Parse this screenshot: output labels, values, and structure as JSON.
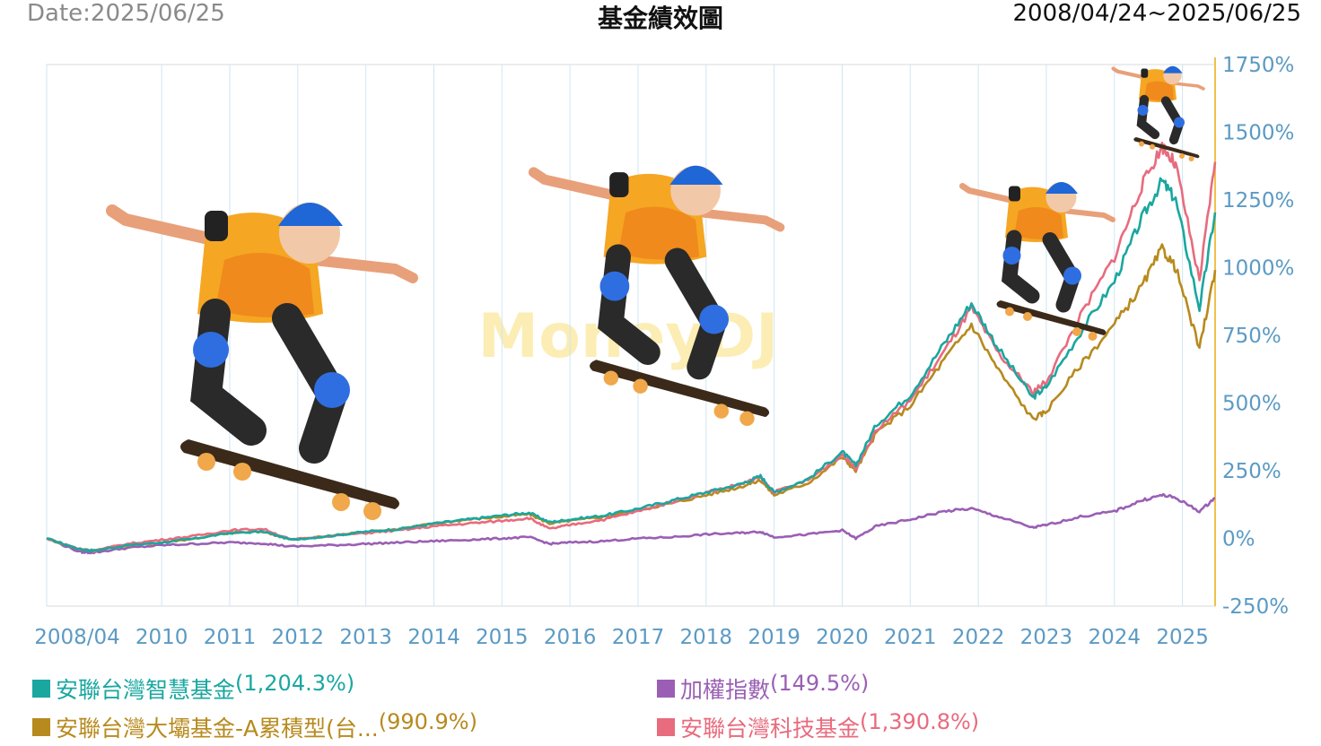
{
  "header": {
    "date": "Date:2025/06/25",
    "title": "基金績效圖",
    "range": "2008/04/24~2025/06/25"
  },
  "watermark": "MoneyDJ",
  "chart_data": {
    "type": "line",
    "title": "基金績效圖",
    "x_ticks": [
      "2008/04",
      "2010",
      "2011",
      "2012",
      "2013",
      "2014",
      "2015",
      "2016",
      "2017",
      "2018",
      "2019",
      "2020",
      "2021",
      "2022",
      "2023",
      "2024",
      "2025"
    ],
    "x_tick_years": [
      2008.31,
      2010,
      2011,
      2012,
      2013,
      2014,
      2015,
      2016,
      2017,
      2018,
      2019,
      2020,
      2021,
      2022,
      2023,
      2024,
      2025
    ],
    "y_ticks": [
      "1750%",
      "1500%",
      "1250%",
      "1000%",
      "750%",
      "500%",
      "250%",
      "0%",
      "-250%"
    ],
    "ylim": [
      -250,
      1750
    ],
    "xlim": [
      2008.31,
      2025.48
    ],
    "grid": true,
    "legend_position": "bottom",
    "series": [
      {
        "name": "安聯台灣智慧基金",
        "value_label": "(1,204.3%)",
        "color": "#1aa7a0",
        "x": [
          2008.31,
          2008.8,
          2009.0,
          2009.5,
          2010.0,
          2010.5,
          2011.0,
          2011.5,
          2011.9,
          2012.5,
          2013.0,
          2013.5,
          2014.0,
          2014.5,
          2015.0,
          2015.4,
          2015.7,
          2016.0,
          2016.5,
          2017.0,
          2017.5,
          2018.0,
          2018.5,
          2018.8,
          2019.0,
          2019.5,
          2020.0,
          2020.2,
          2020.5,
          2021.0,
          2021.5,
          2021.9,
          2022.3,
          2022.8,
          2023.0,
          2023.5,
          2024.0,
          2024.4,
          2024.7,
          2024.9,
          2025.25,
          2025.48
        ],
        "y": [
          0,
          -40,
          -45,
          -25,
          -15,
          0,
          20,
          25,
          -5,
          10,
          25,
          35,
          55,
          70,
          85,
          95,
          60,
          70,
          85,
          110,
          140,
          170,
          200,
          230,
          170,
          220,
          320,
          270,
          420,
          530,
          720,
          870,
          700,
          520,
          560,
          760,
          950,
          1180,
          1320,
          1250,
          850,
          1204
        ]
      },
      {
        "name": "安聯台灣大壩基金-A累積型(台...",
        "value_label": "(990.9%)",
        "color": "#b78a1e",
        "x": [
          2008.31,
          2008.8,
          2009.0,
          2009.5,
          2010.0,
          2010.5,
          2011.0,
          2011.5,
          2011.9,
          2012.5,
          2013.0,
          2013.5,
          2014.0,
          2014.5,
          2015.0,
          2015.4,
          2015.7,
          2016.0,
          2016.5,
          2017.0,
          2017.5,
          2018.0,
          2018.5,
          2018.8,
          2019.0,
          2019.5,
          2020.0,
          2020.2,
          2020.5,
          2021.0,
          2021.5,
          2021.9,
          2022.3,
          2022.8,
          2023.0,
          2023.5,
          2024.0,
          2024.4,
          2024.7,
          2024.9,
          2025.25,
          2025.48
        ],
        "y": [
          0,
          -40,
          -45,
          -25,
          -15,
          0,
          20,
          25,
          -5,
          10,
          25,
          35,
          55,
          70,
          80,
          90,
          55,
          65,
          80,
          105,
          130,
          160,
          190,
          215,
          160,
          205,
          300,
          250,
          390,
          490,
          660,
          790,
          620,
          440,
          470,
          640,
          790,
          930,
          1070,
          1000,
          700,
          991
        ]
      },
      {
        "name": "加權指數",
        "value_label": "(149.5%)",
        "color": "#9a5fb4",
        "x": [
          2008.31,
          2008.8,
          2009.0,
          2009.5,
          2010.0,
          2010.5,
          2011.0,
          2011.5,
          2011.9,
          2012.5,
          2013.0,
          2013.5,
          2014.0,
          2014.5,
          2015.0,
          2015.4,
          2015.7,
          2016.0,
          2016.5,
          2017.0,
          2017.5,
          2018.0,
          2018.5,
          2018.8,
          2019.0,
          2019.5,
          2020.0,
          2020.2,
          2020.5,
          2021.0,
          2021.5,
          2021.9,
          2022.3,
          2022.8,
          2023.0,
          2023.5,
          2024.0,
          2024.4,
          2024.7,
          2024.9,
          2025.25,
          2025.48
        ],
        "y": [
          0,
          -50,
          -52,
          -35,
          -25,
          -20,
          -15,
          -18,
          -30,
          -25,
          -20,
          -15,
          -10,
          -5,
          0,
          5,
          -20,
          -15,
          -10,
          0,
          5,
          15,
          20,
          25,
          5,
          15,
          30,
          0,
          45,
          70,
          100,
          110,
          80,
          40,
          50,
          80,
          100,
          140,
          160,
          150,
          100,
          149.5
        ]
      },
      {
        "name": "安聯台灣科技基金",
        "value_label": "(1,390.8%)",
        "color": "#e86b7e",
        "x": [
          2008.31,
          2008.8,
          2009.0,
          2009.5,
          2010.0,
          2010.5,
          2011.0,
          2011.5,
          2011.9,
          2012.5,
          2013.0,
          2013.5,
          2014.0,
          2014.5,
          2015.0,
          2015.4,
          2015.7,
          2016.0,
          2016.5,
          2017.0,
          2017.5,
          2018.0,
          2018.5,
          2018.8,
          2019.0,
          2019.5,
          2020.0,
          2020.2,
          2020.5,
          2021.0,
          2021.5,
          2021.9,
          2022.3,
          2022.8,
          2023.0,
          2023.5,
          2024.0,
          2024.4,
          2024.7,
          2024.9,
          2025.25,
          2025.48
        ],
        "y": [
          0,
          -40,
          -45,
          -20,
          -5,
          10,
          30,
          35,
          -5,
          10,
          20,
          30,
          45,
          55,
          65,
          75,
          35,
          50,
          70,
          100,
          135,
          170,
          200,
          225,
          170,
          215,
          310,
          260,
          400,
          510,
          690,
          850,
          680,
          540,
          580,
          820,
          1040,
          1300,
          1450,
          1380,
          950,
          1390.8
        ]
      }
    ]
  }
}
